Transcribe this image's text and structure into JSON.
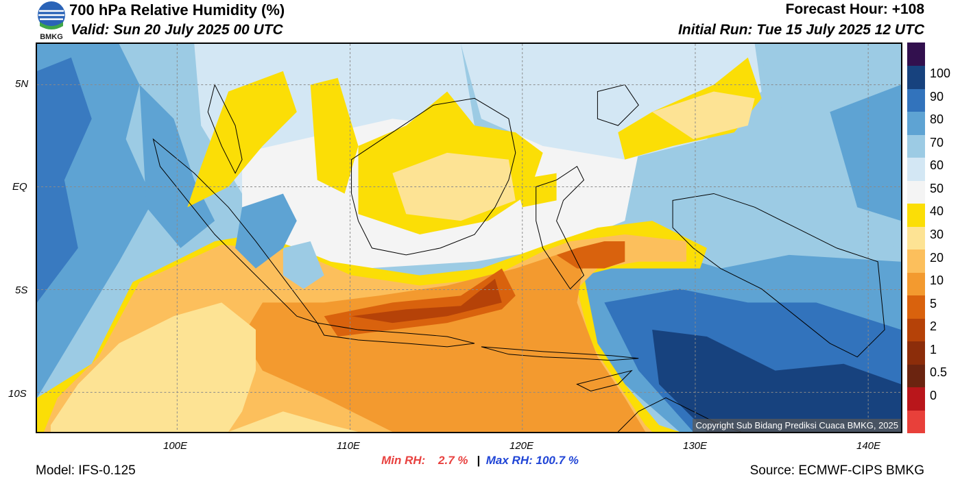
{
  "header": {
    "title": "700 hPa Relative Humidity (%)",
    "valid": "Valid: Sun 20 July 2025 00 UTC",
    "forecast_hour": "Forecast Hour: +108",
    "initial_run": "Initial Run: Tue 15 July 2025 12 UTC",
    "logo_text": "BMKG"
  },
  "map": {
    "lat_labels": [
      "5N",
      "EQ",
      "5S",
      "10S"
    ],
    "lon_labels": [
      "100E",
      "110E",
      "120E",
      "130E",
      "140E"
    ],
    "copyright": "Copyright Sub Bidang Prediksi Cuaca BMKG, 2025"
  },
  "colorbar": {
    "labels": [
      "100",
      "90",
      "80",
      "70",
      "60",
      "50",
      "40",
      "30",
      "20",
      "10",
      "5",
      "2",
      "1",
      "0.5",
      "0"
    ],
    "colors": [
      "#e8403a",
      "#b9161b",
      "#6b2410",
      "#8c2d0a",
      "#b54208",
      "#d9620d",
      "#f39a2f",
      "#fcbf5c",
      "#fde394",
      "#fbde06",
      "#f4f4f4",
      "#d3e7f4",
      "#9ccbe4",
      "#5ea3d3",
      "#3273bc",
      "#17427e",
      "#32104e"
    ]
  },
  "stats": {
    "min_label": "Min RH:",
    "min_value": "2.7 %",
    "separator": "|",
    "max_label": "Max RH:",
    "max_value": "100.7 %"
  },
  "footer": {
    "model": "Model: IFS-0.125",
    "source": "Source: ECMWF-CIPS BMKG"
  }
}
